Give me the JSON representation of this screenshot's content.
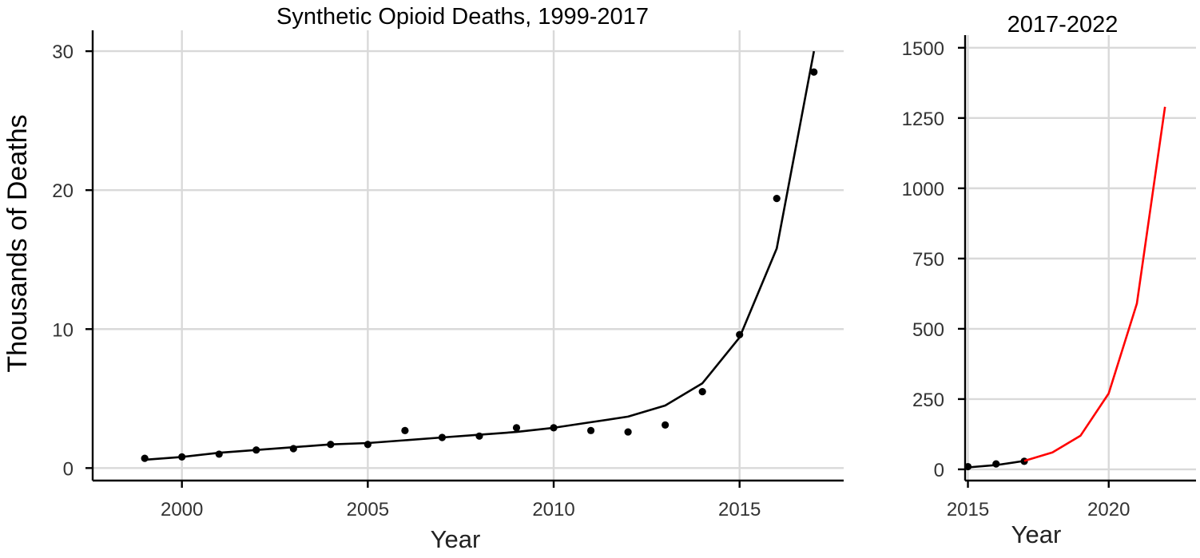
{
  "chart_data": [
    {
      "type": "scatter",
      "title": "Synthetic Opioid Deaths, 1999-2017",
      "xlabel": "Year",
      "ylabel": "Thousands of Deaths",
      "xlim": [
        1997.6,
        2017.8
      ],
      "ylim": [
        -0.9,
        31.5
      ],
      "xticks": [
        2000,
        2005,
        2010,
        2015
      ],
      "yticks": [
        0,
        10,
        20,
        30
      ],
      "grid": true,
      "series": [
        {
          "kind": "points",
          "color": "#000000",
          "x": [
            1999,
            2000,
            2001,
            2002,
            2003,
            2004,
            2005,
            2006,
            2007,
            2008,
            2009,
            2010,
            2011,
            2012,
            2013,
            2014,
            2015,
            2016,
            2017
          ],
          "y": [
            0.7,
            0.8,
            1.0,
            1.3,
            1.4,
            1.7,
            1.7,
            2.7,
            2.2,
            2.3,
            2.9,
            2.9,
            2.7,
            2.6,
            3.1,
            5.5,
            9.6,
            19.4,
            28.5
          ]
        },
        {
          "kind": "line",
          "color": "#000000",
          "x": [
            1999,
            2000,
            2001,
            2002,
            2003,
            2004,
            2005,
            2006,
            2007,
            2008,
            2009,
            2010,
            2011,
            2012,
            2013,
            2014,
            2015,
            2016,
            2017
          ],
          "y": [
            0.6,
            0.8,
            1.1,
            1.3,
            1.5,
            1.7,
            1.8,
            2.0,
            2.2,
            2.4,
            2.6,
            2.9,
            3.3,
            3.7,
            4.5,
            6.1,
            9.4,
            15.8,
            30.0
          ]
        }
      ]
    },
    {
      "type": "line",
      "title": "2017-2022",
      "title_color": "#ff0000",
      "xlabel": "Year",
      "ylabel": "",
      "xlim": [
        2014.9,
        2023.1
      ],
      "ylim": [
        -40,
        1545
      ],
      "xticks": [
        2015,
        2020
      ],
      "yticks": [
        0,
        250,
        500,
        750,
        1000,
        1250,
        1500
      ],
      "grid": true,
      "series": [
        {
          "kind": "points",
          "color": "#000000",
          "x": [
            2015,
            2016,
            2017
          ],
          "y": [
            9.6,
            19.4,
            28.5
          ]
        },
        {
          "kind": "line",
          "color": "#000000",
          "x": [
            2015,
            2016,
            2017
          ],
          "y": [
            7,
            15,
            30
          ]
        },
        {
          "kind": "line",
          "color": "#ff0000",
          "x": [
            2017,
            2018,
            2019,
            2020,
            2021,
            2022
          ],
          "y": [
            30,
            60,
            120,
            270,
            590,
            1290
          ]
        }
      ]
    }
  ]
}
